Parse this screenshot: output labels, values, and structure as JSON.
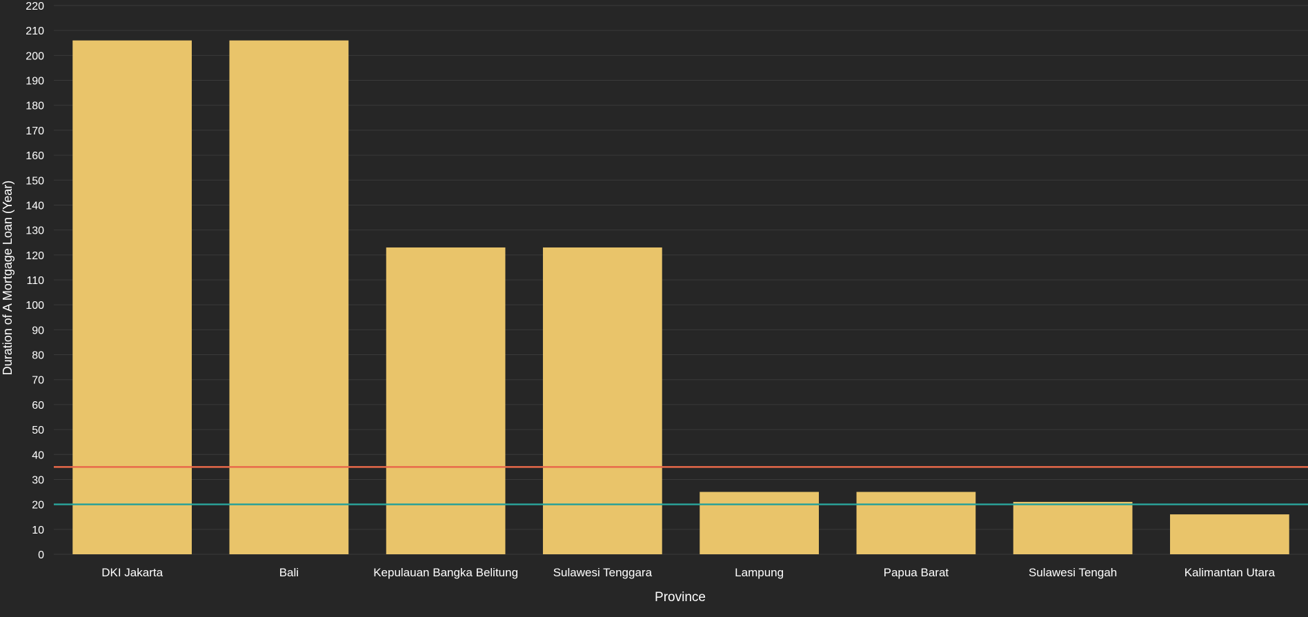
{
  "chart_data": {
    "type": "bar",
    "xlabel": "Province",
    "ylabel": "Duration of A Mortgage Loan (Year)",
    "categories": [
      "DKI Jakarta",
      "Bali",
      "Kepulauan Bangka Belitung",
      "Sulawesi Tenggara",
      "Lampung",
      "Papua Barat",
      "Sulawesi Tengah",
      "Kalimantan Utara"
    ],
    "values": [
      206,
      206,
      123,
      123,
      25,
      25,
      21,
      16
    ],
    "ylim": [
      0,
      220
    ],
    "yticks": [
      0,
      10,
      20,
      30,
      40,
      50,
      60,
      70,
      80,
      90,
      100,
      110,
      120,
      130,
      140,
      150,
      160,
      170,
      180,
      190,
      200,
      210,
      220
    ],
    "reference_lines": [
      {
        "value": 35,
        "color": "#e8694a"
      },
      {
        "value": 20,
        "color": "#2aa198"
      }
    ],
    "grid": true,
    "colors": {
      "background": "#262626",
      "bar": "#e9c46a",
      "grid": "#3a3a3a",
      "text": "#ffffff"
    }
  }
}
